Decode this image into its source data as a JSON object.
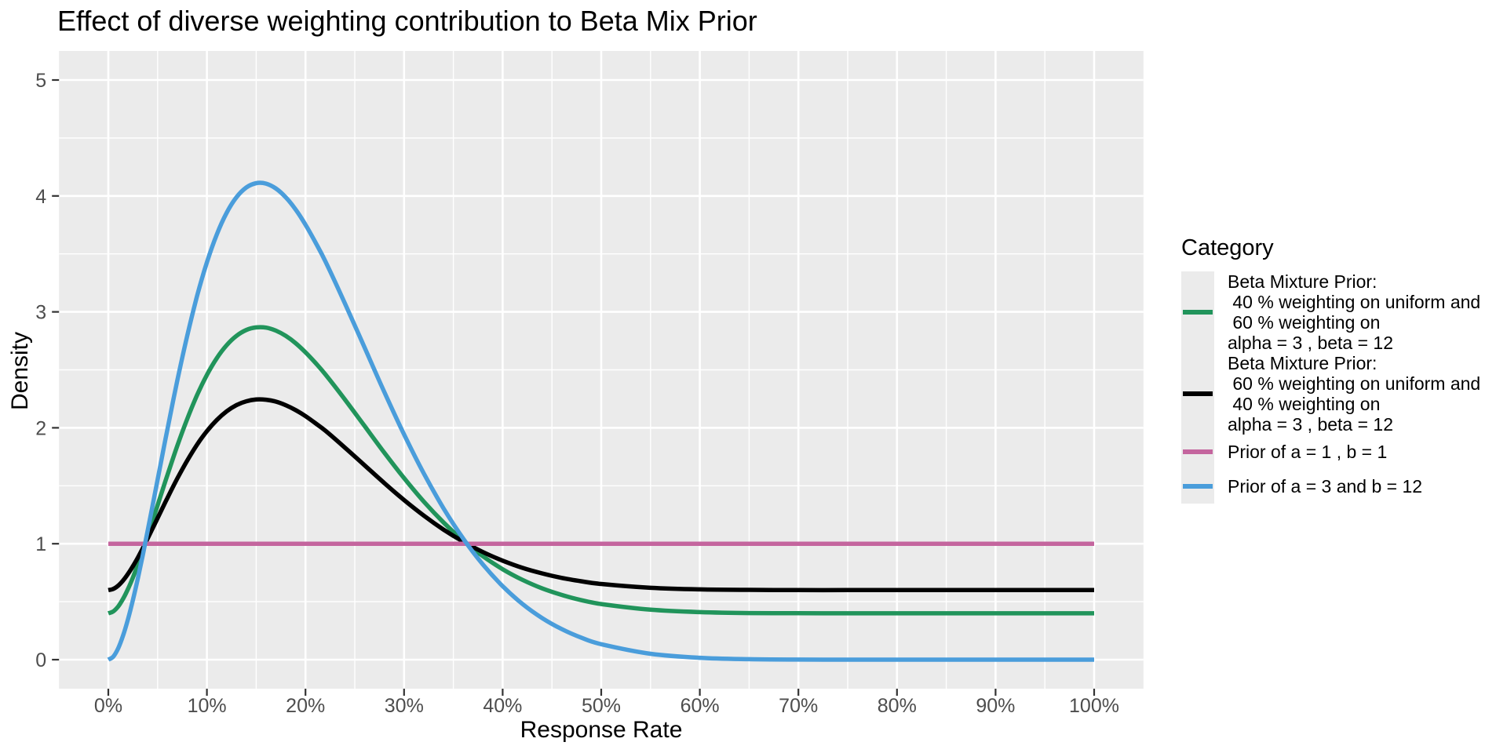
{
  "title": "Effect of diverse weighting contribution to Beta Mix Prior",
  "axes": {
    "x": {
      "label": "Response Rate",
      "tick_labels": [
        "0%",
        "10%",
        "20%",
        "30%",
        "40%",
        "50%",
        "60%",
        "70%",
        "80%",
        "90%",
        "100%"
      ],
      "tick_values": [
        0,
        10,
        20,
        30,
        40,
        50,
        60,
        70,
        80,
        90,
        100
      ],
      "minor_values": [
        5,
        15,
        25,
        35,
        45,
        55,
        65,
        75,
        85,
        95
      ]
    },
    "y": {
      "label": "Density",
      "tick_labels": [
        "0",
        "1",
        "2",
        "3",
        "4",
        "5"
      ],
      "tick_values": [
        0,
        1,
        2,
        3,
        4,
        5
      ],
      "minor_values": [
        0.5,
        1.5,
        2.5,
        3.5,
        4.5
      ]
    }
  },
  "colors": {
    "panel_background": "#EBEBEB",
    "gridline": "#FFFFFF",
    "tick_mark": "#333333",
    "tick_label": "#4D4D4D",
    "text": "#000000"
  },
  "legend": {
    "title": "Category",
    "entries": [
      {
        "label": "Beta Mixture Prior:\n 40 % weighting on uniform and\n 60 % weighting on\nalpha = 3 , beta = 12",
        "color": "#21945B",
        "lines": 4
      },
      {
        "label": "Beta Mixture Prior:\n 60 % weighting on uniform and\n 40 % weighting on\nalpha = 3 , beta = 12",
        "color": "#000000",
        "lines": 4
      },
      {
        "label": "Prior of a = 1 , b = 1",
        "color": "#C4659E",
        "lines": 1
      },
      {
        "label": "Prior of a = 3 and b = 12",
        "color": "#4A9DDB",
        "lines": 1
      }
    ]
  },
  "chart_data": {
    "type": "line",
    "title": "Effect of diverse weighting contribution to Beta Mix Prior",
    "xlabel": "Response Rate",
    "ylabel": "Density",
    "xlim_percent": [
      0,
      100
    ],
    "ylim": [
      0,
      5
    ],
    "grid": true,
    "legend_position": "right",
    "x_percent": [
      0,
      0.5,
      1,
      1.5,
      2,
      2.5,
      3,
      3.5,
      4,
      4.5,
      5,
      5.5,
      6,
      7,
      8,
      9,
      10,
      11,
      12,
      13,
      14,
      15,
      16,
      17,
      18,
      19,
      20,
      21,
      22,
      24,
      26,
      28,
      30,
      32,
      34,
      36,
      38,
      40,
      42,
      44,
      46,
      48,
      50,
      55,
      60,
      65,
      70,
      75,
      80,
      85,
      90,
      95,
      100
    ],
    "series": [
      {
        "name": "Beta Mixture Prior: 40 % weighting on uniform and 60 % weighting on alpha = 3 , beta = 12",
        "color": "#21945B",
        "values": [
          0.4,
          0.416,
          0.459,
          0.525,
          0.61,
          0.71,
          0.822,
          0.942,
          1.069,
          1.2,
          1.332,
          1.464,
          1.594,
          1.845,
          2.076,
          2.281,
          2.456,
          2.6,
          2.712,
          2.793,
          2.844,
          2.866,
          2.864,
          2.838,
          2.793,
          2.73,
          2.651,
          2.561,
          2.463,
          2.244,
          2.015,
          1.785,
          1.566,
          1.364,
          1.184,
          1.026,
          0.892,
          0.78,
          0.689,
          0.615,
          0.558,
          0.513,
          0.48,
          0.431,
          0.41,
          0.402,
          0.401,
          0.4,
          0.4,
          0.4,
          0.4,
          0.4,
          0.4
        ]
      },
      {
        "name": "Beta Mixture Prior: 60 % weighting on uniform and 40 % weighting on alpha = 3 , beta = 12",
        "color": "#000000",
        "values": [
          0.6,
          0.61,
          0.639,
          0.683,
          0.74,
          0.807,
          0.881,
          0.962,
          1.046,
          1.133,
          1.221,
          1.309,
          1.396,
          1.563,
          1.717,
          1.854,
          1.971,
          2.067,
          2.142,
          2.196,
          2.229,
          2.244,
          2.242,
          2.226,
          2.195,
          2.153,
          2.101,
          2.04,
          1.976,
          1.829,
          1.676,
          1.523,
          1.377,
          1.243,
          1.122,
          1.018,
          0.928,
          0.854,
          0.792,
          0.744,
          0.705,
          0.676,
          0.653,
          0.62,
          0.606,
          0.602,
          0.6,
          0.6,
          0.6,
          0.6,
          0.6,
          0.6,
          0.6
        ]
      },
      {
        "name": "Prior of a = 1 , b = 1",
        "color": "#C4659E",
        "x_percent": [
          0,
          100
        ],
        "values": [
          1,
          1
        ]
      },
      {
        "name": "Prior of a = 3 and b = 12",
        "color": "#4A9DDB",
        "values": [
          0,
          0.026,
          0.098,
          0.208,
          0.35,
          0.517,
          0.703,
          0.904,
          1.115,
          1.333,
          1.553,
          1.773,
          1.99,
          2.408,
          2.793,
          3.135,
          3.427,
          3.667,
          3.854,
          3.989,
          4.073,
          4.11,
          4.106,
          4.064,
          3.988,
          3.883,
          3.752,
          3.601,
          3.439,
          3.073,
          2.691,
          2.308,
          1.943,
          1.607,
          1.306,
          1.044,
          0.82,
          0.634,
          0.481,
          0.359,
          0.263,
          0.189,
          0.133,
          0.051,
          0.016,
          0.004,
          0.001,
          0,
          0,
          0,
          0,
          0,
          0
        ]
      }
    ]
  }
}
